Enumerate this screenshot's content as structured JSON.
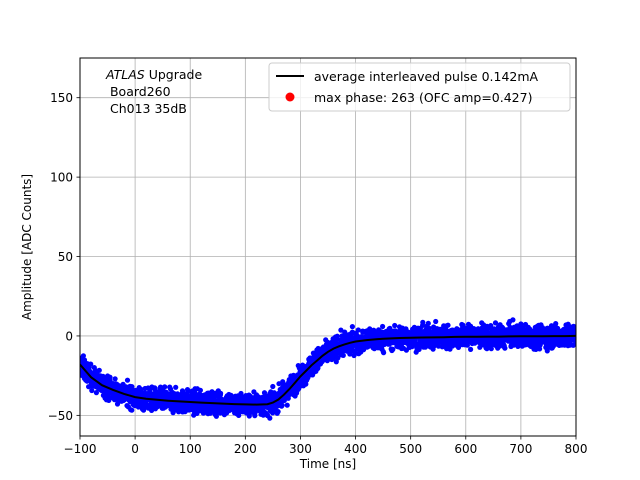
{
  "chart_data": {
    "type": "scatter",
    "xlabel": "Time [ns]",
    "ylabel": "Amplitude [ADC Counts]",
    "xlim": [
      -100,
      800
    ],
    "ylim": [
      -63,
      175
    ],
    "xticks": [
      -100,
      0,
      100,
      200,
      300,
      400,
      500,
      600,
      700,
      800
    ],
    "xtick_labels": [
      "−100",
      "0",
      "100",
      "200",
      "300",
      "400",
      "500",
      "600",
      "700",
      "800"
    ],
    "yticks": [
      -50,
      0,
      50,
      100,
      150
    ],
    "ytick_labels": [
      "−50",
      "0",
      "50",
      "100",
      "150"
    ],
    "grid": true,
    "legend_position": "top-right",
    "annotation": {
      "italic": "ATLAS",
      "line1_rest": " Upgrade",
      "line2": " Board260",
      "line3": " Ch013 35dB"
    },
    "series": [
      {
        "name": "average interleaved pulse 0.142mA",
        "kind": "line",
        "color": "#000000",
        "x": [
          -100,
          -80,
          -60,
          -40,
          -20,
          0,
          20,
          40,
          60,
          80,
          100,
          120,
          140,
          160,
          180,
          200,
          220,
          240,
          250,
          260,
          270,
          280,
          290,
          300,
          310,
          320,
          330,
          340,
          350,
          360,
          370,
          380,
          390,
          400,
          420,
          440,
          460,
          480,
          500,
          520,
          540,
          560,
          580,
          600,
          620,
          640,
          660,
          680,
          700,
          720,
          740,
          760,
          780,
          800
        ],
        "y": [
          -18,
          -26,
          -31,
          -34,
          -36.5,
          -38.5,
          -39.5,
          -40.2,
          -40.8,
          -41.2,
          -41.6,
          -42,
          -42.3,
          -42.6,
          -42.9,
          -43.1,
          -43.2,
          -43,
          -42,
          -40,
          -37,
          -33.5,
          -29.5,
          -25.5,
          -22,
          -18.5,
          -15.5,
          -12.5,
          -10,
          -8,
          -6.5,
          -5.3,
          -4.3,
          -3.5,
          -2.6,
          -2,
          -1.6,
          -1.3,
          -1.1,
          -1,
          -0.9,
          -0.8,
          -0.6,
          -0.5,
          -0.5,
          -0.4,
          -0.4,
          -0.3,
          -0.2,
          -0.2,
          -0.2,
          -0.1,
          -0.1,
          0
        ]
      },
      {
        "name": "max phase: 263 (OFC amp=0.427)",
        "kind": "points",
        "color": "#ff0000",
        "x": [],
        "y": []
      },
      {
        "name": "",
        "kind": "scatter-band",
        "color": "#0000ff",
        "spread": 5
      }
    ]
  }
}
